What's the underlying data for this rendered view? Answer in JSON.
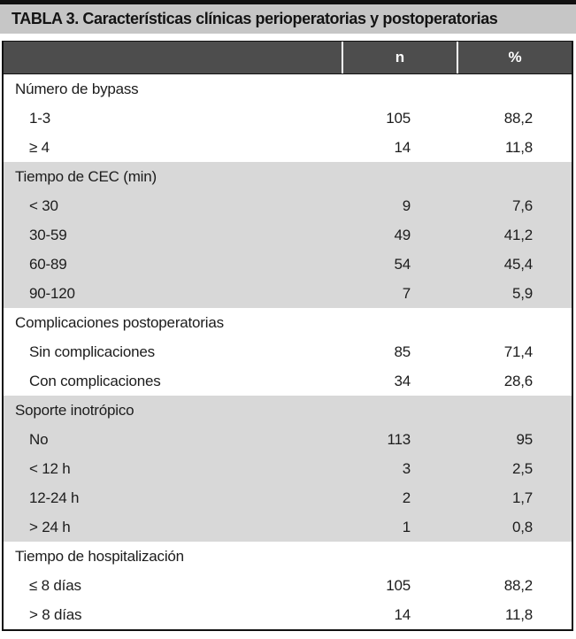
{
  "title": "TABLA 3. Características clínicas perioperatorias y postoperatorias",
  "columns": {
    "n_label": "n",
    "pct_label": "%"
  },
  "colors": {
    "title_bg": "#c6c6c6",
    "header_bg": "#4d4d4d",
    "header_text": "#ffffff",
    "band_bg": "#d8d8d8",
    "border": "#111111",
    "text": "#1c1c1c"
  },
  "sections": [
    {
      "header": "Número de bypass",
      "shaded": false,
      "rows": [
        {
          "label": "1-3",
          "n": "105",
          "pct": "88,2"
        },
        {
          "label": "≥ 4",
          "n": "14",
          "pct": "11,8"
        }
      ]
    },
    {
      "header": "Tiempo de CEC (min)",
      "shaded": true,
      "rows": [
        {
          "label": "< 30",
          "n": "9",
          "pct": "7,6"
        },
        {
          "label": "30-59",
          "n": "49",
          "pct": "41,2"
        },
        {
          "label": "60-89",
          "n": "54",
          "pct": "45,4"
        },
        {
          "label": "90-120",
          "n": "7",
          "pct": "5,9"
        }
      ]
    },
    {
      "header": "Complicaciones postoperatorias",
      "shaded": false,
      "rows": [
        {
          "label": "Sin complicaciones",
          "n": "85",
          "pct": "71,4"
        },
        {
          "label": "Con complicaciones",
          "n": "34",
          "pct": "28,6"
        }
      ]
    },
    {
      "header": "Soporte inotrópico",
      "shaded": true,
      "rows": [
        {
          "label": "No",
          "n": "113",
          "pct": "95"
        },
        {
          "label": "< 12 h",
          "n": "3",
          "pct": "2,5"
        },
        {
          "label": "12-24 h",
          "n": "2",
          "pct": "1,7"
        },
        {
          "label": "> 24 h",
          "n": "1",
          "pct": "0,8"
        }
      ]
    },
    {
      "header": "Tiempo de hospitalización",
      "shaded": false,
      "rows": [
        {
          "label": "≤ 8 días",
          "n": "105",
          "pct": "88,2"
        },
        {
          "label": "> 8 días",
          "n": "14",
          "pct": "11,8"
        }
      ]
    }
  ]
}
